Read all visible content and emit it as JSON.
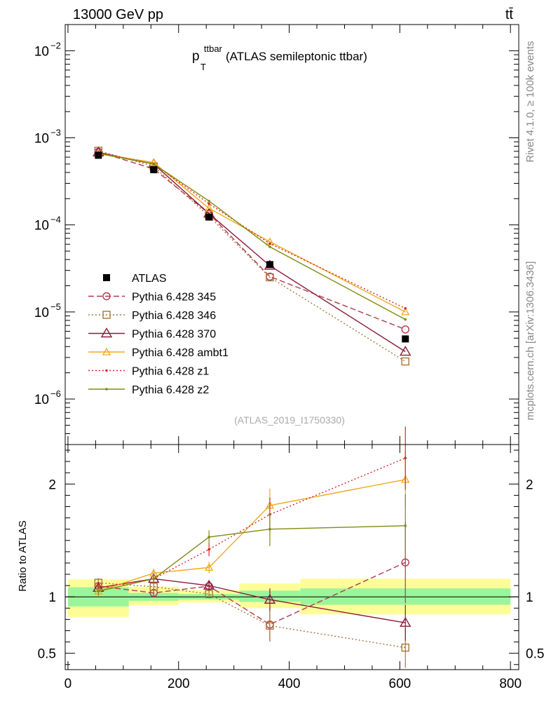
{
  "header": {
    "left_label": "13000 GeV pp",
    "right_label": "tt̄",
    "side_top": "Rivet 4.1.0, ≥ 100k events",
    "side_bottom": "mcplots.cern.ch [arXiv:1306.3436]"
  },
  "chart_data": {
    "type": "line",
    "title_main": "p",
    "title_sup": "ttbar",
    "title_sub": "T",
    "title_rest": " (ATLAS semileptonic ttbar)",
    "analysis_label": "(ATLAS_2019_I1750330)",
    "x_bins": [
      {
        "lo": 0,
        "hi": 110,
        "center": 55
      },
      {
        "lo": 110,
        "hi": 200,
        "center": 155
      },
      {
        "lo": 200,
        "hi": 310,
        "center": 255
      },
      {
        "lo": 310,
        "hi": 420,
        "center": 365
      },
      {
        "lo": 420,
        "hi": 800,
        "center": 610
      }
    ],
    "xlim": [
      -5,
      815
    ],
    "x_ticks": [
      "0",
      "200",
      "400",
      "600",
      "800"
    ],
    "x_tick_values": [
      0,
      200,
      400,
      600,
      800
    ],
    "main_ylim": [
      3e-07,
      0.02
    ],
    "main_y_ticks": [
      {
        "value": 0.01,
        "base": "10",
        "exp": "−2"
      },
      {
        "value": 0.001,
        "base": "10",
        "exp": "−3"
      },
      {
        "value": 0.0001,
        "base": "10",
        "exp": "−4"
      },
      {
        "value": 1e-05,
        "base": "10",
        "exp": "−5"
      },
      {
        "value": 1e-06,
        "base": "10",
        "exp": "−6"
      }
    ],
    "ratio_ylabel": "Ratio to ATLAS",
    "ratio_ylim": [
      0.355,
      2.35
    ],
    "ratio_y_ticks": [
      {
        "value": 0.5,
        "label": "0.5"
      },
      {
        "value": 1,
        "label": "1"
      },
      {
        "value": 2,
        "label": "2"
      }
    ],
    "data": {
      "name": "ATLAS",
      "x": [
        55,
        155,
        255,
        365,
        610
      ],
      "y": [
        0.00063,
        0.00043,
        0.000123,
        3.5e-05,
        4.9e-06
      ]
    },
    "bands": [
      {
        "lo": 0,
        "hi": 110,
        "inner": [
          0.915,
          1.085
        ],
        "outer": [
          0.82,
          1.155
        ]
      },
      {
        "lo": 110,
        "hi": 200,
        "inner": [
          0.965,
          1.035
        ],
        "outer": [
          0.925,
          1.09
        ]
      },
      {
        "lo": 200,
        "hi": 310,
        "inner": [
          0.975,
          1.025
        ],
        "outer": [
          0.95,
          1.06
        ]
      },
      {
        "lo": 310,
        "hi": 420,
        "inner": [
          0.955,
          1.055
        ],
        "outer": [
          0.9,
          1.12
        ]
      },
      {
        "lo": 420,
        "hi": 800,
        "inner": [
          0.93,
          1.075
        ],
        "outer": [
          0.845,
          1.16
        ]
      }
    ],
    "series": [
      {
        "name": "Pythia 6.428 345",
        "color": "#b03a4e",
        "dash": "8,4",
        "marker": "circle",
        "x": [
          55,
          155,
          255,
          365,
          610
        ],
        "values": [
          0.00069,
          0.00044,
          0.000135,
          2.55e-05,
          6.3e-06
        ],
        "ratio": [
          1.095,
          1.035,
          1.095,
          0.755,
          1.305
        ],
        "ratio_err": [
          0.04,
          0.03,
          0.04,
          0.15,
          0.36
        ]
      },
      {
        "name": "Pythia 6.428 346",
        "color": "#a8753a",
        "dash": "2,3",
        "marker": "square",
        "x": [
          55,
          155,
          255,
          365,
          610
        ],
        "values": [
          0.00071,
          0.00047,
          0.000126,
          2.5e-05,
          2.7e-06
        ],
        "ratio": [
          1.125,
          1.09,
          1.025,
          0.745,
          0.55
        ],
        "ratio_err": [
          0.04,
          0.03,
          0.04,
          0.13,
          0.18
        ]
      },
      {
        "name": "Pythia 6.428 370",
        "color": "#8b1a3a",
        "dash": "",
        "marker": "triangle",
        "x": [
          55,
          155,
          255,
          365,
          610
        ],
        "values": [
          0.00068,
          0.0005,
          0.000135,
          3.4e-05,
          3.5e-06
        ],
        "ratio": [
          1.08,
          1.16,
          1.1,
          0.975,
          0.77
        ],
        "ratio_err": [
          0.04,
          0.03,
          0.04,
          0.1,
          0.16
        ]
      },
      {
        "name": "Pythia 6.428 ambt1",
        "color": "#f0a91c",
        "dash": "",
        "marker": "triangle-small",
        "x": [
          55,
          155,
          255,
          365,
          610
        ],
        "values": [
          0.00066,
          0.00052,
          0.000155,
          6.4e-05,
          1e-05
        ],
        "ratio": [
          1.05,
          1.21,
          1.26,
          1.81,
          2.04
        ],
        "ratio_err": [
          0.04,
          0.04,
          0.05,
          0.15,
          0.25
        ]
      },
      {
        "name": "Pythia 6.428 z1",
        "color": "#d62728",
        "dash": "2,3",
        "marker": "dot",
        "x": [
          55,
          155,
          255,
          365,
          610
        ],
        "values": [
          0.00068,
          0.0005,
          0.000175,
          6.1e-05,
          1.1e-05
        ],
        "ratio": [
          1.08,
          1.16,
          1.42,
          1.73,
          2.23
        ],
        "ratio_err": [
          0.04,
          0.04,
          0.06,
          0.15,
          0.28
        ]
      },
      {
        "name": "Pythia 6.428 z2",
        "color": "#808a10",
        "dash": "",
        "marker": "dot",
        "x": [
          55,
          155,
          255,
          365,
          610
        ],
        "values": [
          0.00066,
          0.0005,
          0.000188,
          5.6e-05,
          8.2e-06
        ],
        "ratio": [
          1.05,
          1.16,
          1.53,
          1.6,
          1.63
        ],
        "ratio_err": [
          0.04,
          0.04,
          0.06,
          0.15,
          0.28
        ]
      }
    ]
  }
}
